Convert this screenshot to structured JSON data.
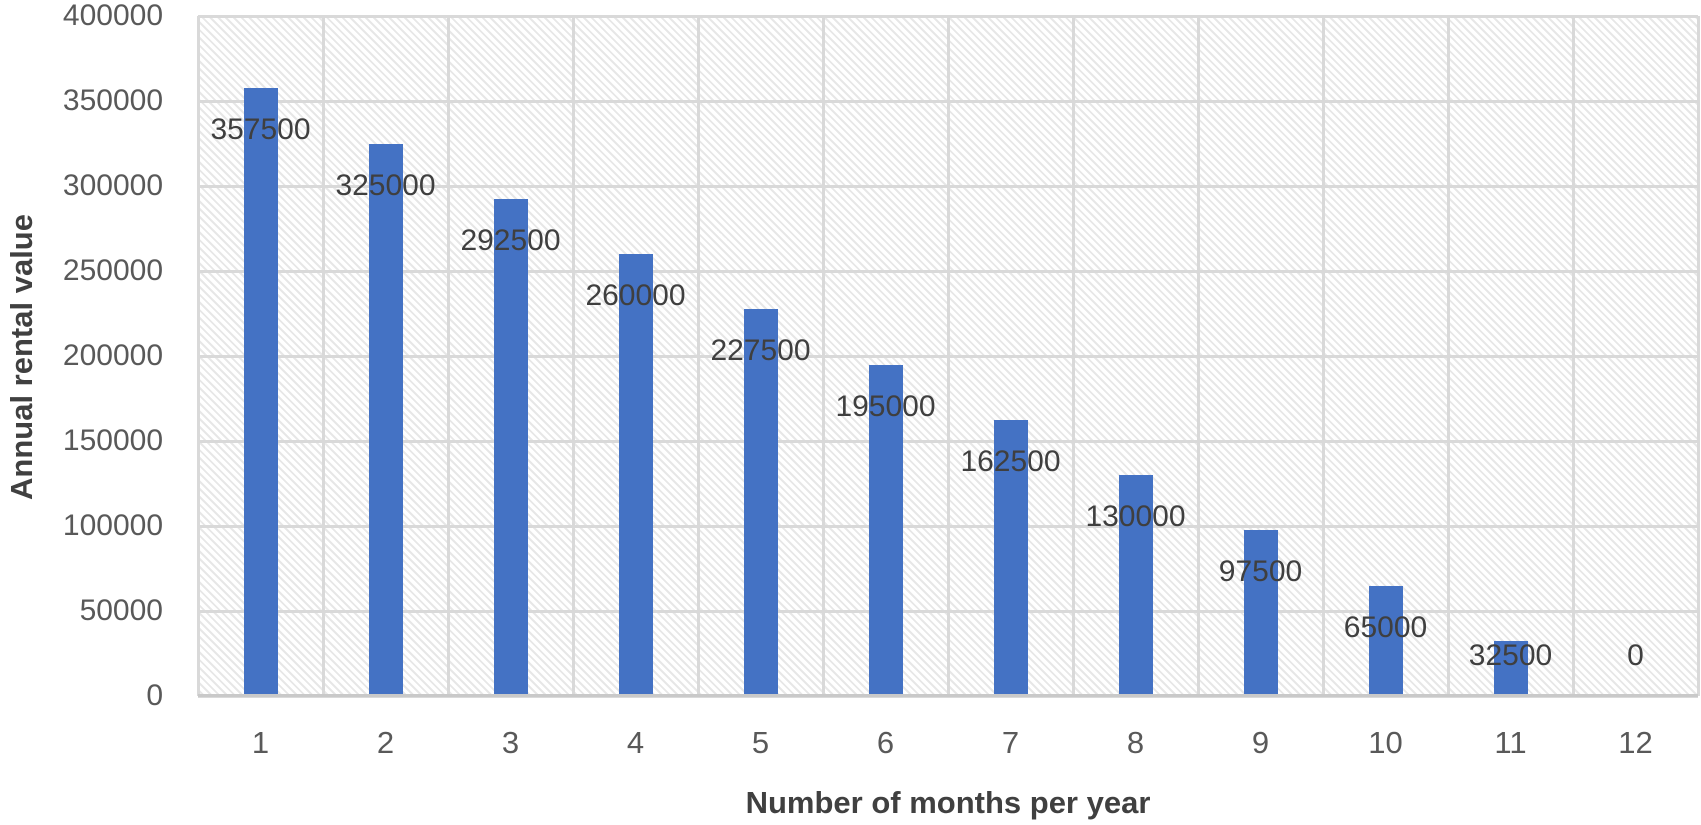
{
  "chart_data": {
    "type": "bar",
    "title": "",
    "categories": [
      "1",
      "2",
      "3",
      "4",
      "5",
      "6",
      "7",
      "8",
      "9",
      "10",
      "11",
      "12"
    ],
    "values": [
      357500,
      325000,
      292500,
      260000,
      227500,
      195000,
      162500,
      130000,
      97500,
      65000,
      32500,
      0
    ],
    "data_labels": [
      "357500",
      "325000",
      "292500",
      "260000",
      "227500",
      "195000",
      "162500",
      "130000",
      "97500",
      "65000",
      "32500",
      "0"
    ],
    "xlabel": "Number of months per year",
    "ylabel": "Annual rental value",
    "ylim": [
      0,
      400000
    ],
    "ytick_step": 50000,
    "yticks": [
      400000,
      350000,
      300000,
      250000,
      200000,
      150000,
      100000,
      50000,
      0
    ],
    "ytick_labels": [
      "400000",
      "350000",
      "300000",
      "250000",
      "200000",
      "150000",
      "100000",
      "50000",
      "0"
    ],
    "legend": "none",
    "grid": "horizontal and vertical gridlines",
    "bar_color": "#4472C4",
    "gridline_color": "#d9d9d9",
    "axis_line_color": "#c9c9c9",
    "tick_label_color": "#595959",
    "data_label_color": "#3f3f3f",
    "axis_title_color": "#404040",
    "plot_background_pattern": "light downward diagonal hatch"
  }
}
